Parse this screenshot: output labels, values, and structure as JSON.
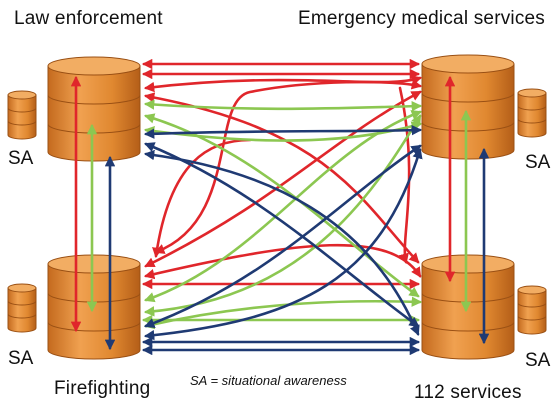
{
  "labels": {
    "top_left": "Law enforcement",
    "top_right": "Emergency medical services",
    "bottom_left": "Firefighting",
    "bottom_right": "112 services",
    "sa": "SA",
    "legend": "SA = situational awareness"
  },
  "nodes": [
    {
      "id": "law_enforcement",
      "icon": "database-cylinder"
    },
    {
      "id": "emergency_medical_services",
      "icon": "database-cylinder"
    },
    {
      "id": "firefighting",
      "icon": "database-cylinder"
    },
    {
      "id": "112_services",
      "icon": "database-cylinder"
    }
  ],
  "colors": {
    "cylinder_fill": "#e38a2e",
    "cylinder_dark": "#b4601a",
    "cylinder_top": "#f0a85a",
    "red": "#e0262b",
    "green": "#8cc751",
    "navy": "#1f3a73"
  }
}
